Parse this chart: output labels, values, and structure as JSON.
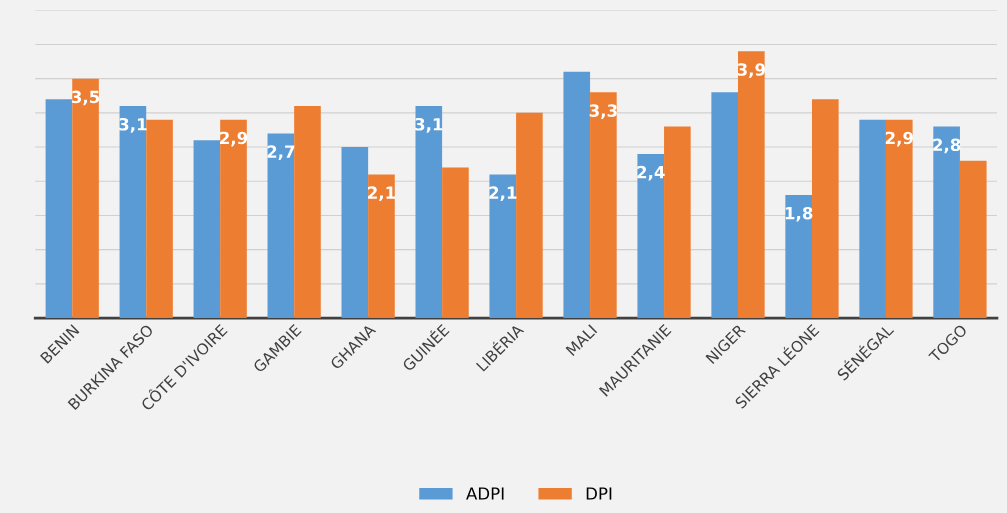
{
  "chart_data": {
    "type": "bar",
    "categories": [
      "BENIN",
      "BURKINA FASO",
      "CÔTE D'IVOIRE",
      "GAMBIE",
      "GHANA",
      "GUINÉE",
      "LIBÉRIA",
      "MALI",
      "MAURITANIE",
      "NIGER",
      "SIERRA LÉONE",
      "SÉNÉGAL",
      "TOGO"
    ],
    "series": [
      {
        "name": "ADPI",
        "color": "#5b9bd5",
        "values": [
          3.2,
          3.1,
          2.6,
          2.7,
          2.5,
          3.1,
          2.1,
          3.6,
          2.4,
          3.3,
          1.8,
          2.9,
          2.8
        ],
        "value_labels": [
          null,
          "3,1",
          null,
          "2,7",
          null,
          "3,1",
          "2,1",
          null,
          "2,4",
          null,
          "1,8",
          null,
          "2,8"
        ]
      },
      {
        "name": "DPI",
        "color": "#ed7d31",
        "values": [
          3.5,
          2.9,
          2.9,
          3.1,
          2.1,
          2.2,
          3.0,
          3.3,
          2.8,
          3.9,
          3.2,
          2.9,
          2.3
        ],
        "value_labels": [
          "3,5",
          null,
          "2,9",
          null,
          "2,1",
          null,
          null,
          "3,3",
          null,
          "3,9",
          null,
          "2,9",
          null
        ]
      }
    ],
    "ylim": [
      0,
      4.5
    ],
    "yticks": [
      {
        "value": 0,
        "label": null
      },
      {
        "value": 0.5,
        "label": null
      },
      {
        "value": 1,
        "label": null
      },
      {
        "value": 1.5,
        "label": null
      },
      {
        "value": 2,
        "label": null
      },
      {
        "value": 2.5,
        "label": null
      },
      {
        "value": 3,
        "label": null
      },
      {
        "value": 3.5,
        "label": null
      },
      {
        "value": 4,
        "label": null
      },
      {
        "value": 4.5,
        "label": null
      }
    ],
    "grid": "y",
    "legend": "bottom",
    "tick_labels": "x"
  }
}
